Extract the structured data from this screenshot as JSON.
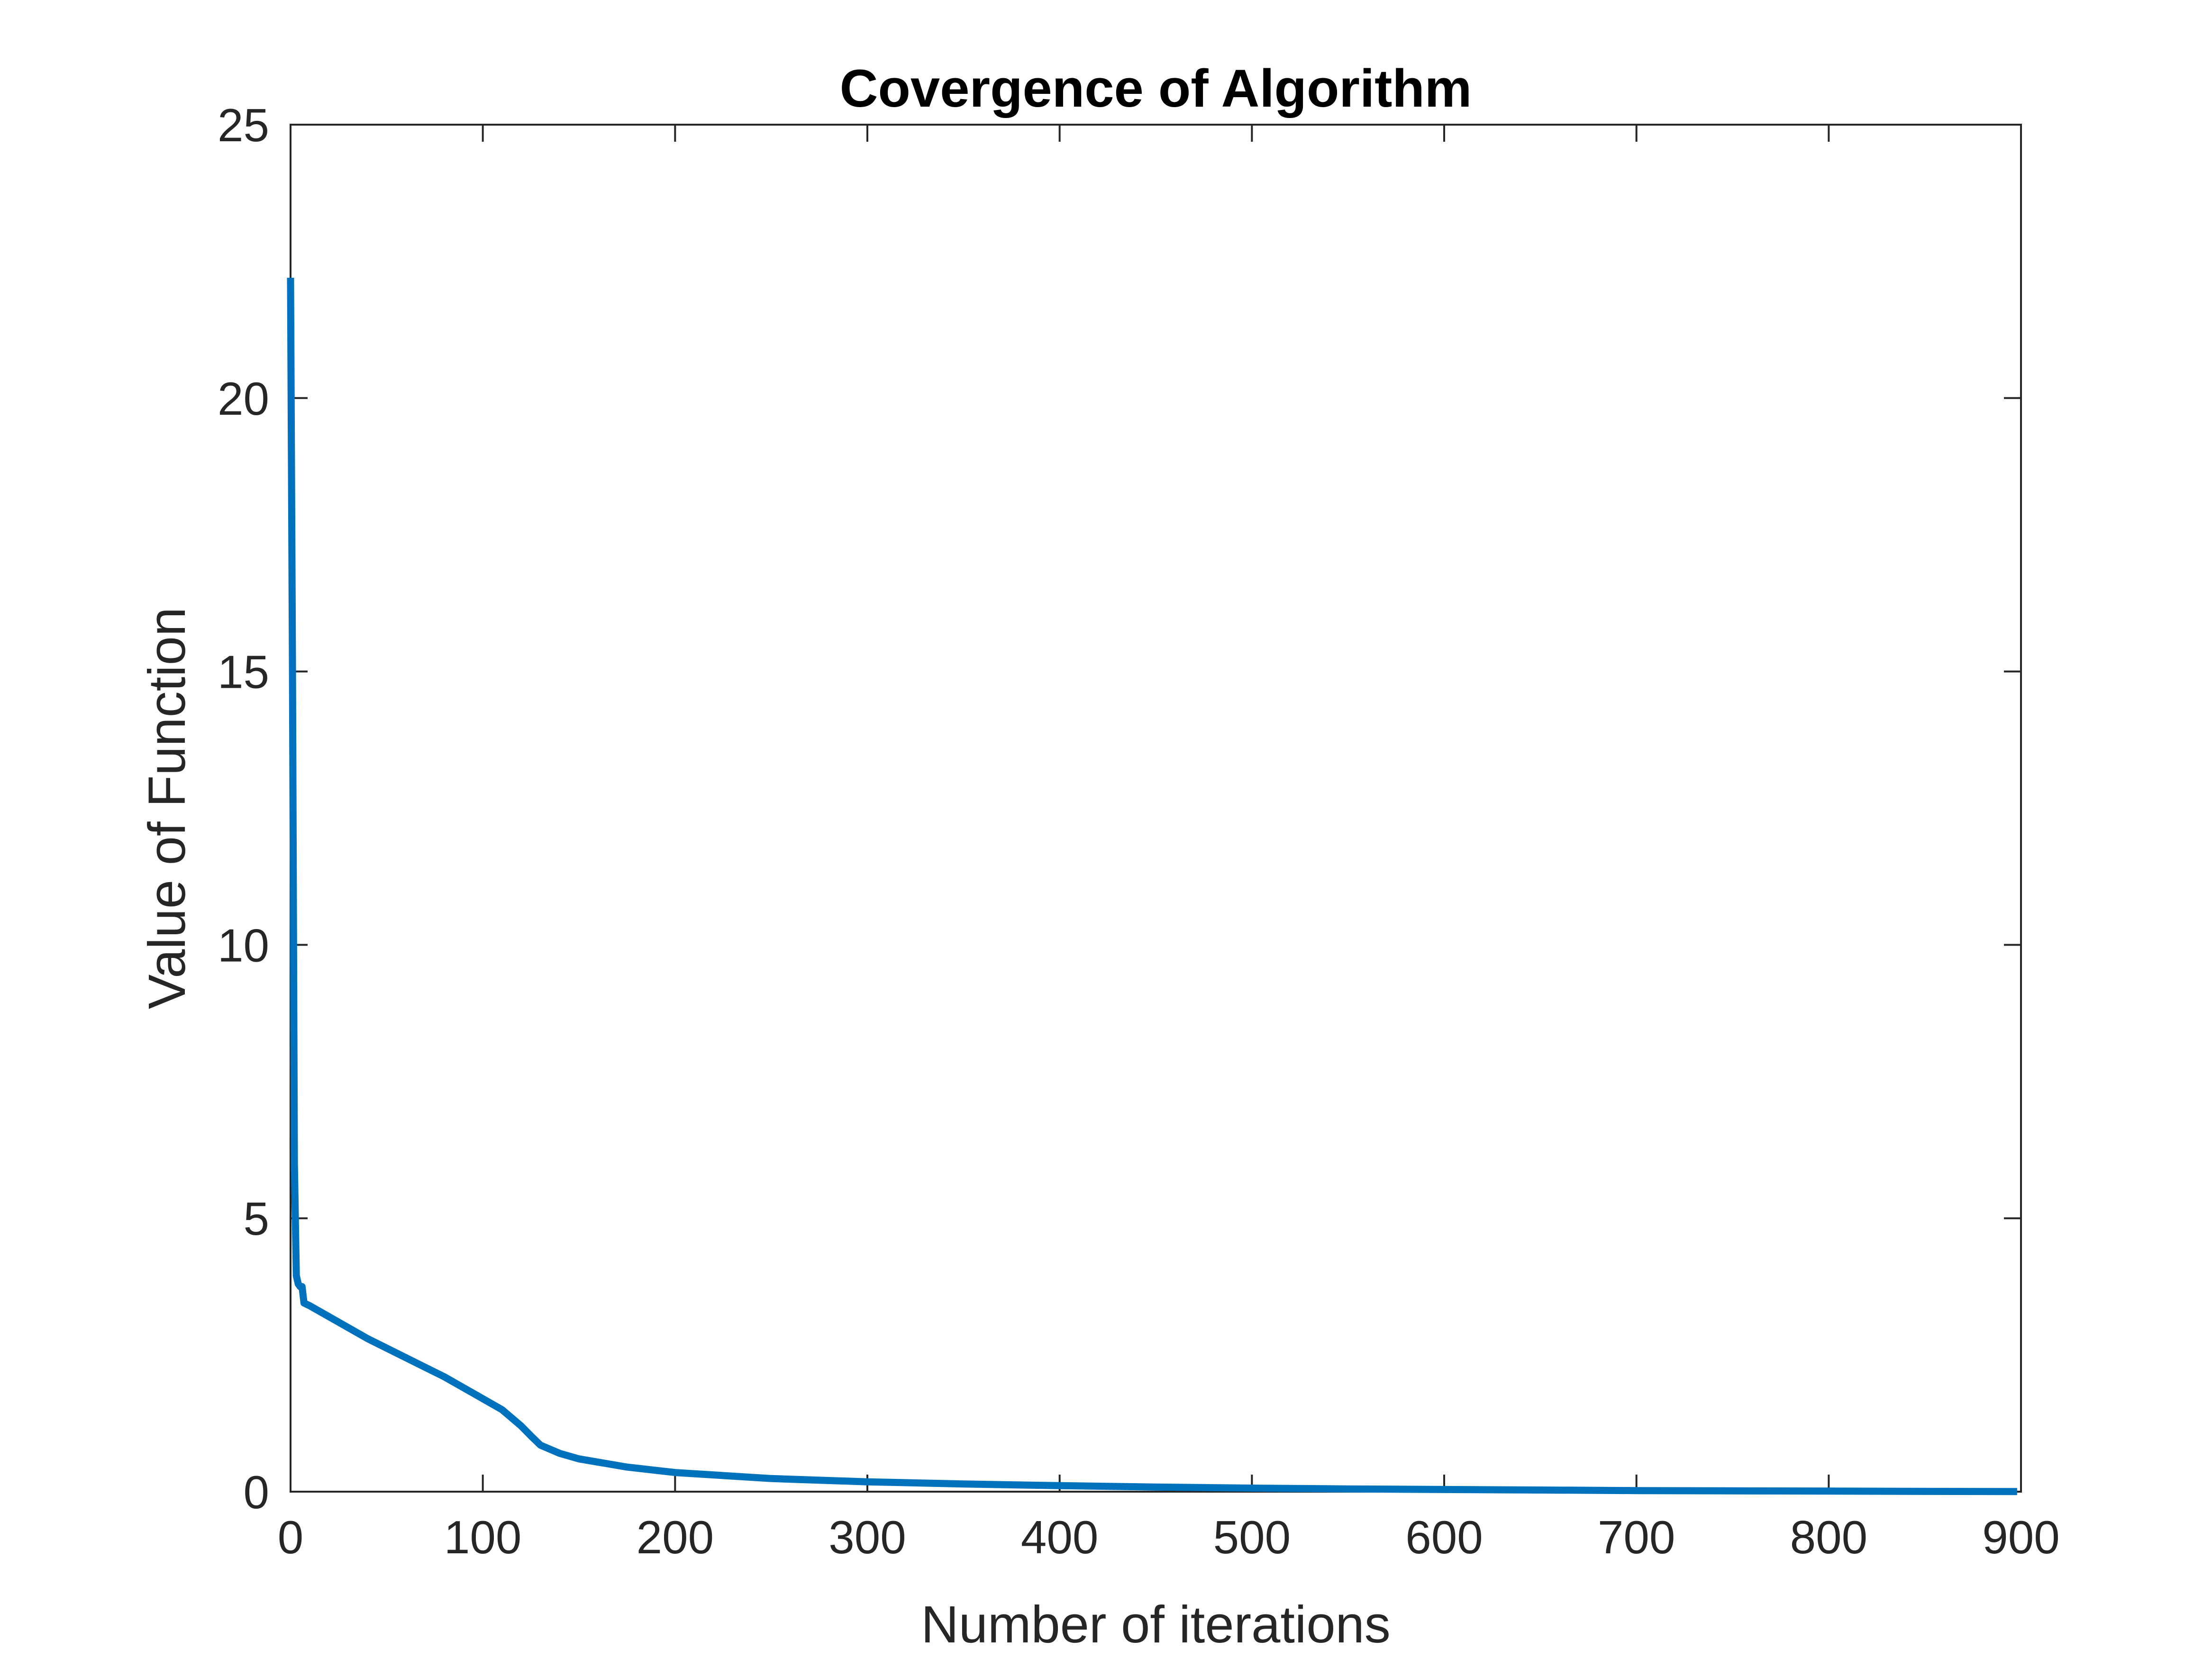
{
  "chart_data": {
    "type": "line",
    "title": "Covergence of Algorithm",
    "xlabel": "Number of iterations",
    "ylabel": "Value of Function",
    "xlim": [
      0,
      900
    ],
    "ylim": [
      0,
      25
    ],
    "xticks": [
      0,
      100,
      200,
      300,
      400,
      500,
      600,
      700,
      800,
      900
    ],
    "yticks": [
      0,
      5,
      10,
      15,
      20,
      25
    ],
    "grid": false,
    "box": true,
    "line_color": "#0072BD",
    "series": [
      {
        "x": [
          0,
          1,
          2,
          3,
          4,
          5,
          6,
          7,
          10,
          20,
          40,
          60,
          80,
          100,
          110,
          120,
          125,
          130,
          140,
          150,
          175,
          200,
          250,
          300,
          350,
          400,
          450,
          500,
          550,
          600,
          650,
          700,
          750,
          800,
          850,
          898
        ],
        "values": [
          22.2,
          15.0,
          6.0,
          3.95,
          3.8,
          3.75,
          3.75,
          3.45,
          3.4,
          3.2,
          2.8,
          2.45,
          2.1,
          1.7,
          1.5,
          1.2,
          1.02,
          0.85,
          0.7,
          0.6,
          0.45,
          0.35,
          0.24,
          0.18,
          0.14,
          0.11,
          0.085,
          0.065,
          0.05,
          0.04,
          0.03,
          0.02,
          0.015,
          0.01,
          0.005,
          0.003
        ]
      }
    ]
  }
}
